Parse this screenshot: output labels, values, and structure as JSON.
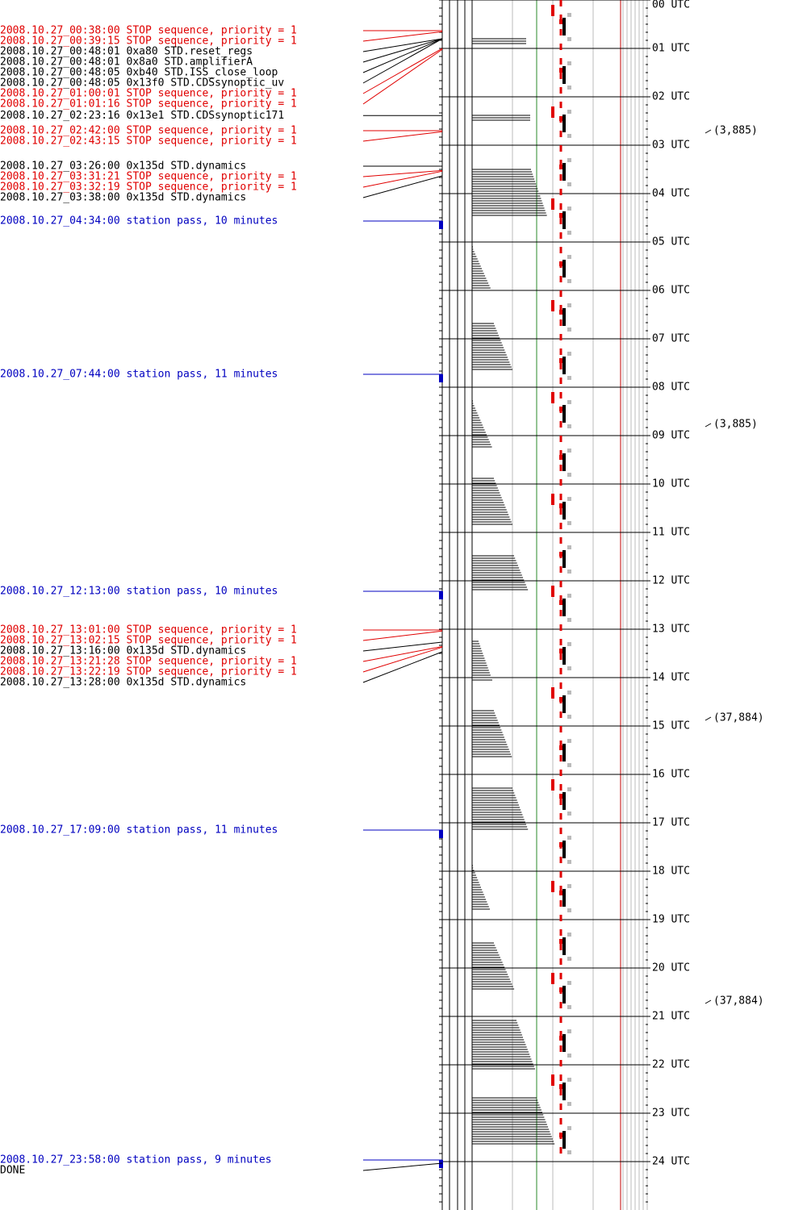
{
  "events": [
    {
      "text": "2008.10.27_00:38:00 STOP sequence, priority = 1",
      "color": "#e00000"
    },
    {
      "text": "2008.10.27_00:39:15 STOP sequence, priority = 1",
      "color": "#e00000"
    },
    {
      "text": "2008.10.27_00:48:01  0xa80 STD.reset_regs",
      "color": "#000000"
    },
    {
      "text": "2008.10.27_00:48:01  0x8a0 STD.amplifierA",
      "color": "#000000"
    },
    {
      "text": "2008.10.27_00:48:05  0xb40 STD.ISS_close_loop",
      "color": "#000000"
    },
    {
      "text": "2008.10.27_00:48:05 0x13f0 STD.CDSsynoptic_uv",
      "color": "#000000"
    },
    {
      "text": "2008.10.27_01:00:01 STOP sequence, priority = 1",
      "color": "#e00000"
    },
    {
      "text": "2008.10.27_01:01:16 STOP sequence, priority = 1",
      "color": "#e00000"
    },
    {
      "text": "2008.10.27_02:23:16 0x13e1 STD.CDSsynoptic171",
      "color": "#000000"
    },
    {
      "text": "2008.10.27_02:42:00 STOP sequence, priority = 1",
      "color": "#e00000"
    },
    {
      "text": "2008.10.27_02:43:15 STOP sequence, priority = 1",
      "color": "#e00000"
    },
    {
      "text": "2008.10.27_03:26:00 0x135d STD.dynamics",
      "color": "#000000"
    },
    {
      "text": "2008.10.27_03:31:21 STOP sequence, priority = 1",
      "color": "#e00000"
    },
    {
      "text": "2008.10.27_03:32:19 STOP sequence, priority = 1",
      "color": "#e00000"
    },
    {
      "text": "2008.10.27_03:38:00 0x135d STD.dynamics",
      "color": "#000000"
    },
    {
      "text": "2008.10.27_04:34:00 station pass, 10 minutes",
      "color": "#0000c0"
    },
    {
      "text": "2008.10.27_07:44:00 station pass, 11 minutes",
      "color": "#0000c0"
    },
    {
      "text": "2008.10.27_12:13:00 station pass, 10 minutes",
      "color": "#0000c0"
    },
    {
      "text": "2008.10.27_13:01:00 STOP sequence, priority = 1",
      "color": "#e00000"
    },
    {
      "text": "2008.10.27_13:02:15 STOP sequence, priority = 1",
      "color": "#e00000"
    },
    {
      "text": "2008.10.27_13:16:00 0x135d STD.dynamics",
      "color": "#000000"
    },
    {
      "text": "2008.10.27_13:21:28 STOP sequence, priority = 1",
      "color": "#e00000"
    },
    {
      "text": "2008.10.27_13:22:19 STOP sequence, priority = 1",
      "color": "#e00000"
    },
    {
      "text": "2008.10.27_13:28:00 0x135d STD.dynamics",
      "color": "#000000"
    },
    {
      "text": "2008.10.27_17:09:00 station pass, 11 minutes",
      "color": "#0000c0"
    },
    {
      "text": "2008.10.27_23:58:00 station pass, 9 minutes",
      "color": "#0000c0"
    }
  ],
  "footer": "DONE",
  "hours": [
    "00 UTC",
    "01 UTC",
    "02 UTC",
    "03 UTC",
    "04 UTC",
    "05 UTC",
    "06 UTC",
    "07 UTC",
    "08 UTC",
    "09 UTC",
    "10 UTC",
    "11 UTC",
    "12 UTC",
    "13 UTC",
    "14 UTC",
    "15 UTC",
    "16 UTC",
    "17 UTC",
    "18 UTC",
    "19 UTC",
    "20 UTC",
    "21 UTC",
    "22 UTC",
    "23 UTC",
    "24 UTC"
  ],
  "annotations": [
    "(3,885)",
    "(3,885)",
    "(37,884)",
    "(37,884)"
  ]
}
